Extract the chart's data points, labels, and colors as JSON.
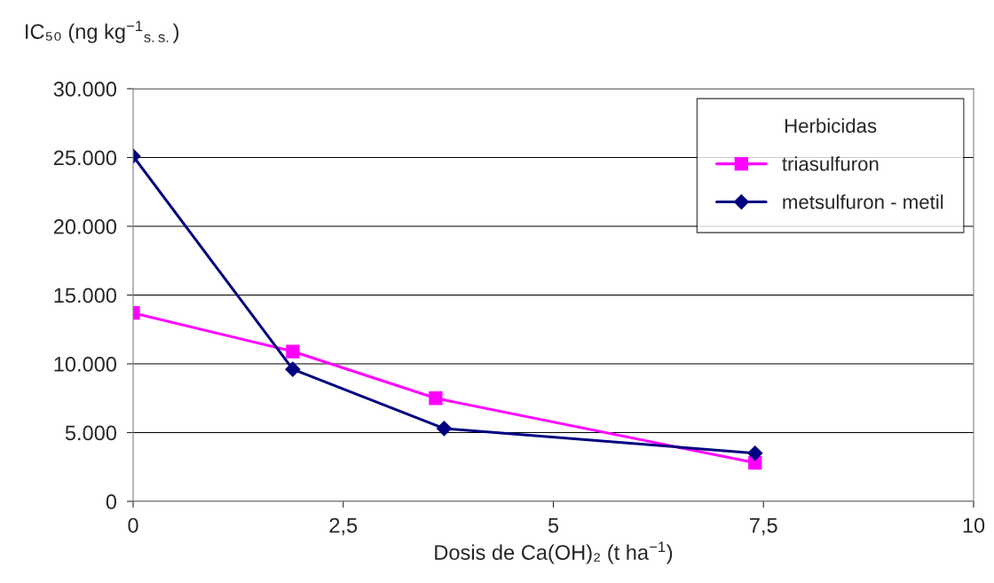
{
  "chart_data": {
    "type": "line",
    "xlabel": "Dosis de Ca(OH)₂ (t ha$^{−1}$)",
    "ylabel": "IC₅₀ (ng kg$^{−1}$$_{s.s.}$)",
    "legend_title": "Herbicidas",
    "legend": "top right",
    "grid": "y",
    "line_style": "solid",
    "series": [
      {
        "name": "triasulfuron",
        "color": "#ff00ff",
        "marker": "square",
        "x": [
          0,
          1.9,
          3.6,
          7.4
        ],
        "values": [
          13700,
          10900,
          7500,
          2800
        ]
      },
      {
        "name": "metsulfuron - metil",
        "color": "#000080",
        "marker": "diamond",
        "x": [
          0,
          1.9,
          3.7,
          7.4
        ],
        "values": [
          25100,
          9600,
          5300,
          3500
        ]
      }
    ],
    "xlim": [
      0,
      10
    ],
    "xticks": [
      0,
      {
        "value": 2.5,
        "label": "2,5"
      },
      5,
      {
        "value": 7.5,
        "label": "7,5"
      },
      10
    ],
    "ylim": [
      0,
      30000
    ],
    "yticks": [
      0,
      {
        "value": 5000,
        "label": "5.000"
      },
      {
        "value": 10000,
        "label": "10.000"
      },
      {
        "value": 15000,
        "label": "15.000"
      },
      {
        "value": 20000,
        "label": "20.000"
      },
      {
        "value": 25000,
        "label": "25.000"
      },
      {
        "value": 30000,
        "label": "30.000"
      }
    ]
  }
}
